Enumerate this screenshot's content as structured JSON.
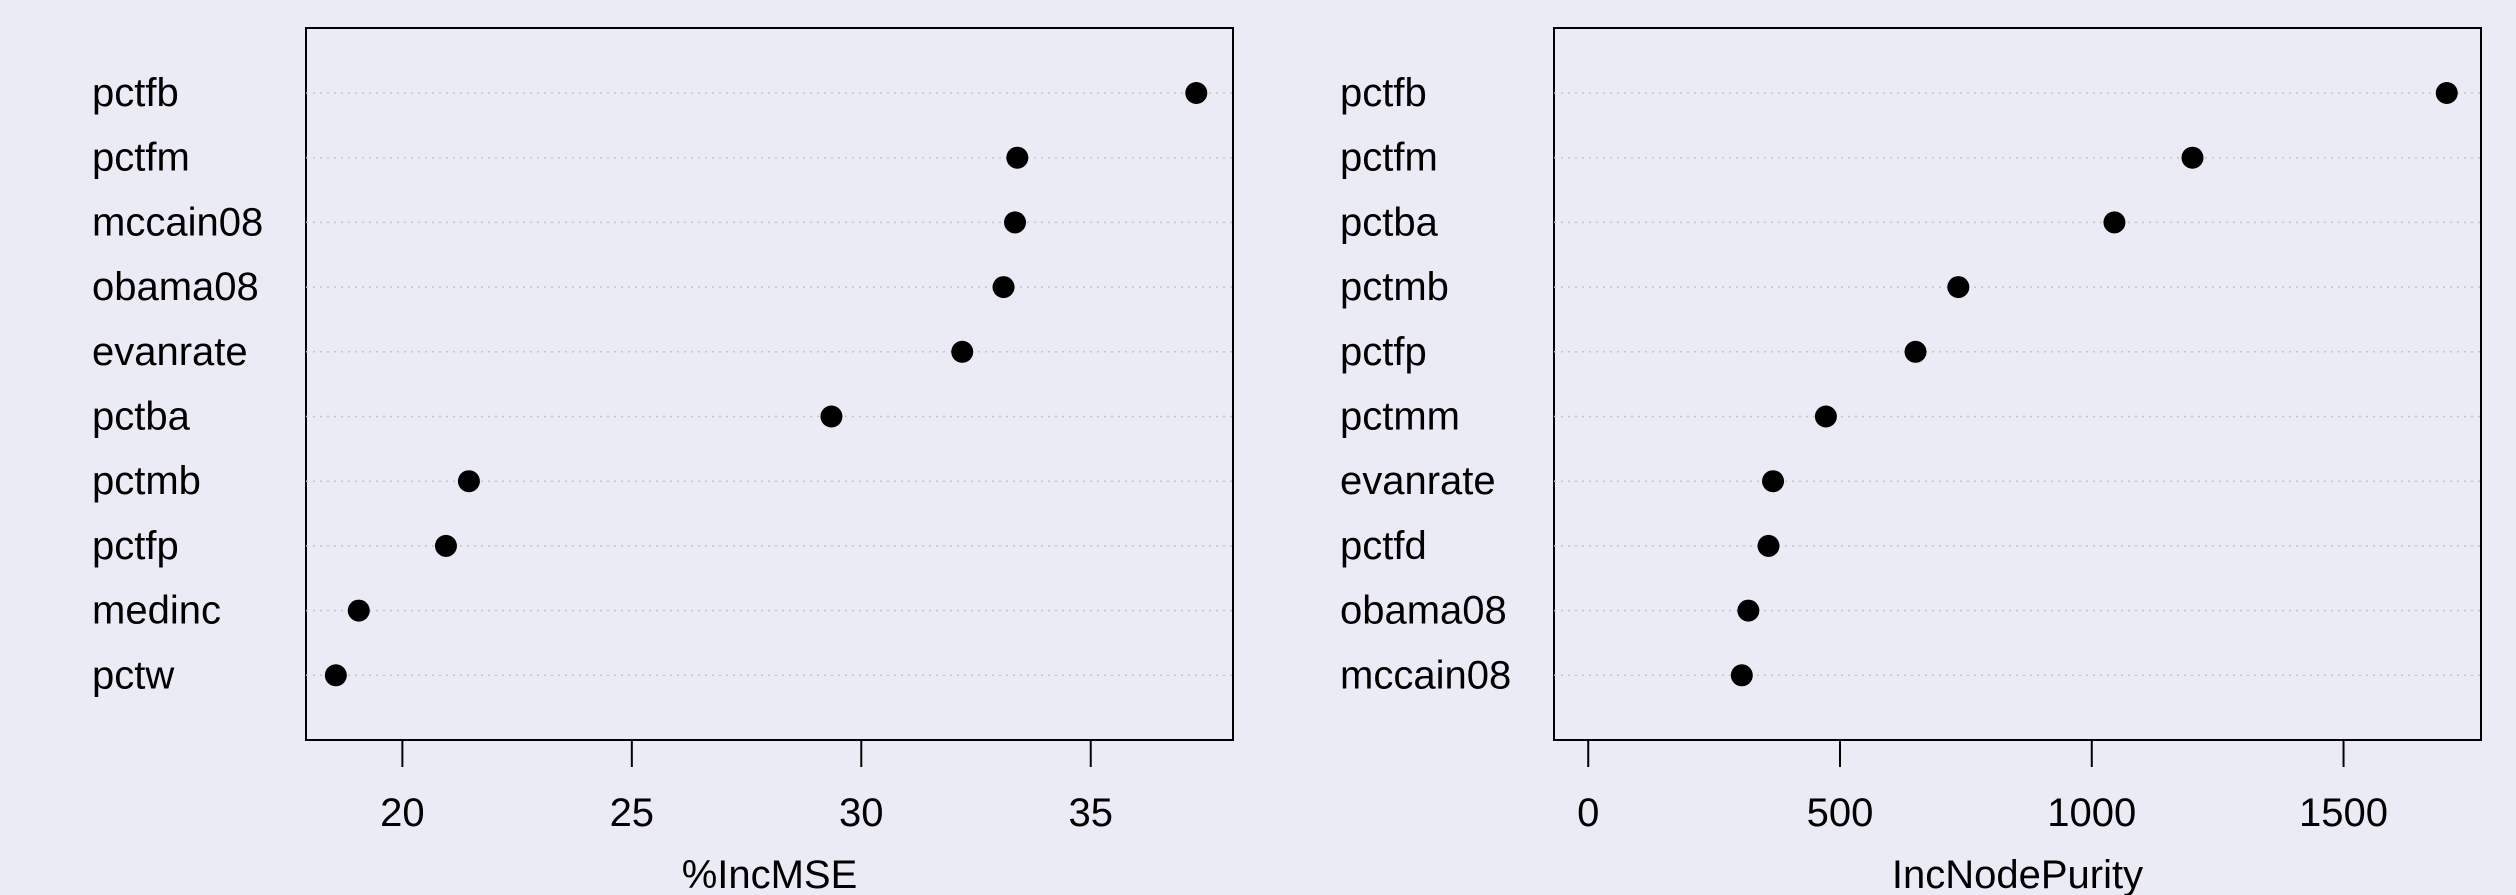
{
  "chart_data": [
    {
      "type": "scatter",
      "subtype": "dotchart",
      "xlabel": "%IncMSE",
      "categories": [
        "pctfb",
        "pctfm",
        "mccain08",
        "obama08",
        "evanrate",
        "pctba",
        "pctmb",
        "pctfp",
        "medinc",
        "pctw"
      ],
      "values": [
        37.3,
        33.4,
        33.35,
        33.1,
        32.2,
        29.35,
        21.45,
        20.95,
        19.05,
        18.55
      ],
      "xticks": [
        20,
        25,
        30,
        35
      ],
      "xlim": [
        17.9,
        38.1
      ],
      "grid": "dotted horizontal guide lines",
      "point_color": "#000000"
    },
    {
      "type": "scatter",
      "subtype": "dotchart",
      "xlabel": "IncNodePurity",
      "categories": [
        "pctfb",
        "pctfm",
        "pctba",
        "pctmb",
        "pctfp",
        "pctmm",
        "evanrate",
        "pctfd",
        "obama08",
        "mccain08"
      ],
      "values": [
        1705,
        1200,
        1045,
        735,
        650,
        472,
        367,
        358,
        318,
        305
      ],
      "xticks": [
        0,
        500,
        1000,
        1500
      ],
      "xlim": [
        -68,
        1773
      ],
      "grid": "dotted horizontal guide lines",
      "point_color": "#000000"
    }
  ]
}
